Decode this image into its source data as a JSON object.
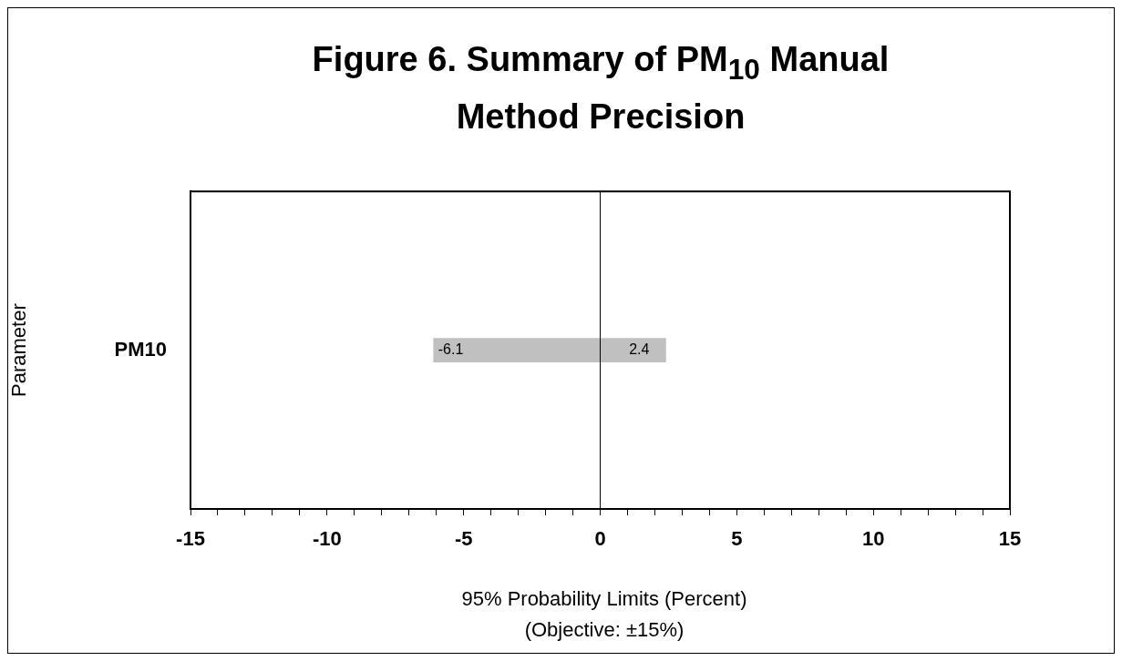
{
  "chart_data": {
    "type": "bar",
    "title": "Figure 6.  Summary of PM$_{10}$ Manual Method Precision",
    "xlabel": "95% Probability Limits (Percent)",
    "ylabel": "Parameter",
    "annotations": [
      "(Objective: ±15%)"
    ],
    "orientation": "horizontal",
    "stacked": true,
    "data_labels": true,
    "legend": false,
    "grid": false,
    "categories": [
      "PM10"
    ],
    "series": [
      {
        "color": "#c0c0c0",
        "values": [
          -6.1
        ]
      },
      {
        "color": "#c0c0c0",
        "values": [
          2.4
        ]
      }
    ],
    "xlim": [
      -15,
      15
    ],
    "xticks": [
      -15,
      {
        "value": -14,
        "label": null
      },
      {
        "value": -13,
        "label": null
      },
      {
        "value": -12,
        "label": null
      },
      {
        "value": -11,
        "label": null
      },
      -10,
      {
        "value": -9,
        "label": null
      },
      {
        "value": -8,
        "label": null
      },
      {
        "value": -7,
        "label": null
      },
      {
        "value": -6,
        "label": null
      },
      -5,
      {
        "value": -4,
        "label": null
      },
      {
        "value": -3,
        "label": null
      },
      {
        "value": -2,
        "label": null
      },
      {
        "value": -1,
        "label": null
      },
      0,
      {
        "value": 1,
        "label": null
      },
      {
        "value": 2,
        "label": null
      },
      {
        "value": 3,
        "label": null
      },
      {
        "value": 4,
        "label": null
      },
      5,
      {
        "value": 6,
        "label": null
      },
      {
        "value": 7,
        "label": null
      },
      {
        "value": 8,
        "label": null
      },
      {
        "value": 9,
        "label": null
      },
      10,
      {
        "value": 11,
        "label": null
      },
      {
        "value": 12,
        "label": null
      },
      {
        "value": 13,
        "label": null
      },
      {
        "value": 14,
        "label": null
      },
      15
    ],
    "ref_lines": [
      {
        "axis": "x",
        "value": 0,
        "color": "#000000"
      }
    ]
  }
}
